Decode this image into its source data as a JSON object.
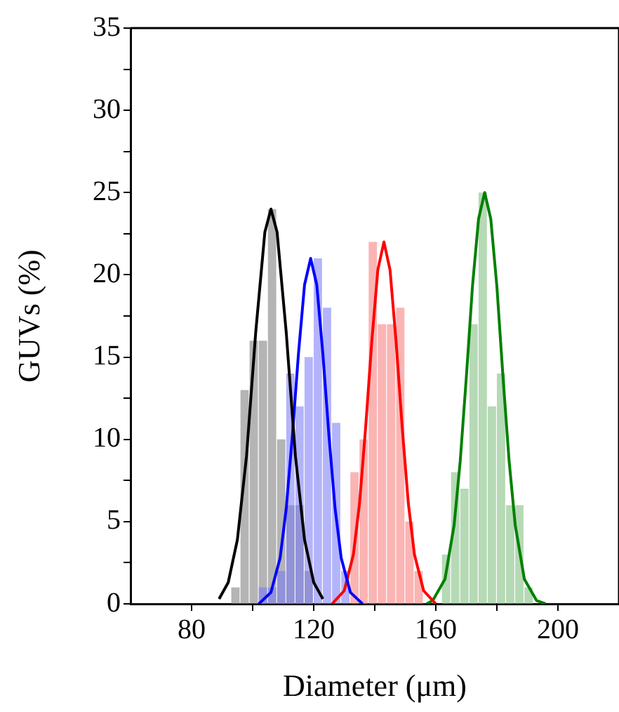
{
  "chart_data": {
    "type": "histogram",
    "xlabel": "Diameter (μm)",
    "ylabel": "GUVs (%)",
    "bins": [
      93,
      96,
      99,
      102,
      105,
      108,
      111,
      114,
      117,
      120,
      123,
      126,
      129,
      132,
      135,
      138,
      141,
      144,
      147,
      150,
      153,
      156,
      159,
      162,
      165,
      168,
      171,
      174,
      177,
      180,
      183,
      186,
      189,
      192
    ],
    "series": [
      {
        "color": "#b4b4b4",
        "values": [
          1,
          13,
          16,
          16,
          24,
          10,
          6,
          6,
          2,
          0,
          0,
          0,
          0,
          0,
          0,
          0,
          0,
          0,
          0,
          0,
          0,
          0,
          0,
          0,
          0,
          0,
          0,
          0,
          0,
          0,
          0,
          0,
          0
        ]
      },
      {
        "color": "#b4b4fa",
        "values": [
          0,
          0,
          0,
          1,
          1,
          2,
          14,
          12,
          15,
          21,
          18,
          11,
          2,
          0,
          0,
          0,
          0,
          0,
          0,
          0,
          0,
          0,
          0,
          0,
          0,
          0,
          0,
          0,
          0,
          0,
          0,
          0,
          0
        ]
      },
      {
        "color": "#fbb4b4",
        "values": [
          0,
          0,
          0,
          0,
          0,
          0,
          0,
          0,
          0,
          0,
          0,
          0,
          0,
          8,
          10,
          22,
          17,
          17,
          18,
          5,
          2,
          0,
          0,
          0,
          0,
          0,
          0,
          0,
          0,
          0,
          0,
          0,
          0
        ]
      },
      {
        "color": "#b6d9b6",
        "values": [
          0,
          0,
          0,
          0,
          0,
          0,
          0,
          0,
          0,
          0,
          0,
          0,
          0,
          0,
          0,
          0,
          0,
          0,
          0,
          0,
          0,
          0,
          0,
          3,
          8,
          7,
          17,
          25,
          12,
          14,
          6,
          6,
          1
        ]
      },
      {
        "type": "line",
        "color": "#000000",
        "x": [
          89,
          92,
          95,
          98,
          101,
          104,
          106,
          108,
          111,
          114,
          117,
          120,
          123
        ],
        "values": [
          0.3,
          1.3,
          3.9,
          9.0,
          16.5,
          22.6,
          24,
          22.6,
          16.5,
          9.0,
          3.9,
          1.3,
          0.3
        ]
      },
      {
        "type": "line",
        "color": "#0000ff",
        "x": [
          102,
          106,
          109,
          111,
          113,
          115,
          117,
          119,
          121,
          123,
          125,
          127,
          129,
          132,
          136
        ],
        "values": [
          0,
          0.7,
          2.8,
          5.8,
          10.2,
          15.2,
          19.4,
          21,
          19.4,
          15.2,
          10.2,
          5.8,
          2.8,
          0.7,
          0
        ]
      },
      {
        "type": "line",
        "color": "#ff0000",
        "x": [
          126,
          130,
          133,
          135,
          137,
          139,
          141,
          143,
          145,
          147,
          149,
          151,
          153,
          156,
          160
        ],
        "values": [
          0,
          0.8,
          3.0,
          6.1,
          10.7,
          15.9,
          20.3,
          22,
          20.3,
          15.9,
          10.7,
          6.1,
          3.0,
          0.8,
          0
        ]
      },
      {
        "type": "line",
        "color": "#008000",
        "x": [
          157,
          159,
          163,
          166,
          168,
          170,
          172,
          174,
          176,
          178,
          180,
          182,
          184,
          186,
          189,
          193,
          196
        ],
        "values": [
          0,
          0.2,
          1.5,
          4.8,
          8.7,
          13.8,
          19.3,
          23.4,
          25,
          23.4,
          19.3,
          13.8,
          8.7,
          4.8,
          1.5,
          0.2,
          0
        ]
      }
    ],
    "xlim": [
      60,
      220
    ],
    "xticks": [
      80,
      {
        "value": 100,
        "label": null
      },
      120,
      {
        "value": 140,
        "label": null
      },
      160,
      {
        "value": 180,
        "label": null
      },
      200
    ],
    "ylim": [
      0,
      35
    ],
    "yticks": [
      0,
      {
        "value": 2.5,
        "label": null
      },
      5,
      {
        "value": 7.5,
        "label": null
      },
      10,
      {
        "value": 12.5,
        "label": null
      },
      15,
      {
        "value": 17.5,
        "label": null
      },
      20,
      {
        "value": 22.5,
        "label": null
      },
      25,
      {
        "value": 27.5,
        "label": null
      },
      30,
      {
        "value": 32.5,
        "label": null
      },
      35
    ],
    "grid": false,
    "legend": false
  }
}
